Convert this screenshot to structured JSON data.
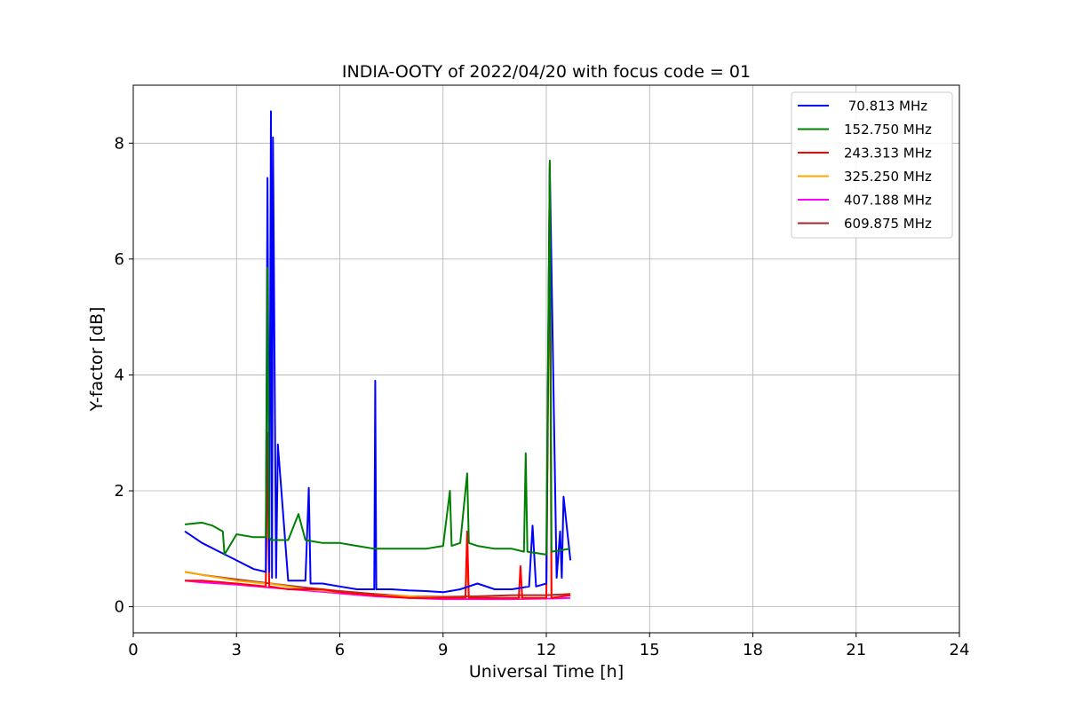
{
  "chart_data": {
    "type": "line",
    "title": "INDIA-OOTY of 2022/04/20 with focus code = 01",
    "xlabel": "Universal Time [h]",
    "ylabel": "Y-factor [dB]",
    "xlim": [
      0,
      24
    ],
    "ylim": [
      -0.45,
      9.0
    ],
    "xticks": [
      "0",
      "3",
      "6",
      "9",
      "12",
      "15",
      "18",
      "21",
      "24"
    ],
    "yticks": [
      "0",
      "2",
      "4",
      "6",
      "8"
    ],
    "grid": true,
    "legend_position": "top-right",
    "series": [
      {
        "name": " 70.813 MHz",
        "color": "#0000ff",
        "x": [
          1.5,
          2.0,
          2.5,
          3.0,
          3.5,
          3.85,
          3.9,
          3.95,
          4.0,
          4.03,
          4.06,
          4.15,
          4.2,
          4.5,
          5.0,
          5.1,
          5.15,
          5.5,
          6.0,
          6.5,
          7.0,
          7.03,
          7.06,
          7.5,
          8.0,
          8.5,
          9.0,
          9.5,
          10.0,
          10.5,
          11.0,
          11.5,
          11.6,
          11.7,
          12.0,
          12.1,
          12.3,
          12.4,
          12.45,
          12.5,
          12.7
        ],
        "y": [
          1.3,
          1.1,
          0.95,
          0.8,
          0.65,
          0.6,
          7.4,
          0.6,
          8.55,
          0.5,
          8.1,
          0.5,
          2.8,
          0.45,
          0.45,
          2.05,
          0.4,
          0.4,
          0.35,
          0.3,
          0.3,
          3.9,
          0.3,
          0.3,
          0.28,
          0.27,
          0.25,
          0.3,
          0.4,
          0.3,
          0.3,
          0.35,
          1.4,
          0.35,
          0.4,
          7.6,
          0.5,
          1.3,
          0.5,
          1.9,
          0.8
        ]
      },
      {
        "name": "152.750 MHz",
        "color": "#008000",
        "x": [
          1.5,
          2.0,
          2.3,
          2.6,
          2.65,
          3.0,
          3.5,
          3.85,
          3.9,
          3.95,
          4.0,
          4.5,
          4.8,
          5.0,
          5.5,
          6.0,
          6.5,
          7.0,
          7.5,
          8.0,
          8.5,
          9.0,
          9.2,
          9.25,
          9.5,
          9.7,
          9.75,
          10.0,
          10.5,
          11.0,
          11.35,
          11.4,
          11.45,
          12.0,
          12.1,
          12.15,
          12.7
        ],
        "y": [
          1.42,
          1.45,
          1.4,
          1.3,
          0.9,
          1.25,
          1.2,
          1.2,
          5.85,
          1.2,
          1.15,
          1.15,
          1.6,
          1.15,
          1.1,
          1.1,
          1.05,
          1.0,
          1.0,
          1.0,
          1.0,
          1.05,
          2.0,
          1.05,
          1.1,
          2.3,
          1.1,
          1.05,
          1.0,
          1.0,
          0.95,
          2.65,
          0.95,
          0.9,
          7.7,
          0.95,
          1.0
        ]
      },
      {
        "name": "243.313 MHz",
        "color": "#ff0000",
        "x": [
          1.5,
          2.0,
          3.0,
          3.85,
          3.9,
          3.95,
          4.5,
          5.0,
          5.5,
          6.0,
          7.0,
          8.0,
          9.0,
          9.65,
          9.7,
          9.75,
          10.5,
          11.2,
          11.25,
          11.3,
          12.0,
          12.1,
          12.15,
          12.7
        ],
        "y": [
          0.45,
          0.45,
          0.4,
          0.35,
          3.0,
          0.35,
          0.3,
          0.3,
          0.3,
          0.25,
          0.2,
          0.15,
          0.15,
          0.15,
          1.3,
          0.15,
          0.15,
          0.15,
          0.7,
          0.15,
          0.15,
          7.65,
          0.15,
          0.2
        ]
      },
      {
        "name": "325.250 MHz",
        "color": "#ffa500",
        "x": [
          1.5,
          2.0,
          3.0,
          3.85,
          3.9,
          3.95,
          4.5,
          5.0,
          6.0,
          7.0,
          8.0,
          9.0,
          9.65,
          9.7,
          9.75,
          10.5,
          11.5,
          12.0,
          12.1,
          12.15,
          12.7
        ],
        "y": [
          0.6,
          0.55,
          0.45,
          0.4,
          2.15,
          0.4,
          0.35,
          0.3,
          0.25,
          0.2,
          0.18,
          0.15,
          0.15,
          0.9,
          0.15,
          0.15,
          0.15,
          0.15,
          6.8,
          0.15,
          0.2
        ]
      },
      {
        "name": "407.188 MHz",
        "color": "#ff00ff",
        "x": [
          1.5,
          2.0,
          3.0,
          4.0,
          5.0,
          6.0,
          7.0,
          8.0,
          9.0,
          10.0,
          11.0,
          12.0,
          12.7
        ],
        "y": [
          0.45,
          0.42,
          0.38,
          0.33,
          0.28,
          0.23,
          0.18,
          0.15,
          0.13,
          0.13,
          0.13,
          0.14,
          0.15
        ]
      },
      {
        "name": "609.875 MHz",
        "color": "#a52a2a",
        "x": [
          1.5,
          2.0,
          3.0,
          4.0,
          5.0,
          6.0,
          7.0,
          8.0,
          9.0,
          10.0,
          11.0,
          12.0,
          12.7
        ],
        "y": [
          0.6,
          0.55,
          0.47,
          0.4,
          0.33,
          0.27,
          0.22,
          0.18,
          0.17,
          0.18,
          0.2,
          0.2,
          0.22
        ]
      }
    ]
  }
}
